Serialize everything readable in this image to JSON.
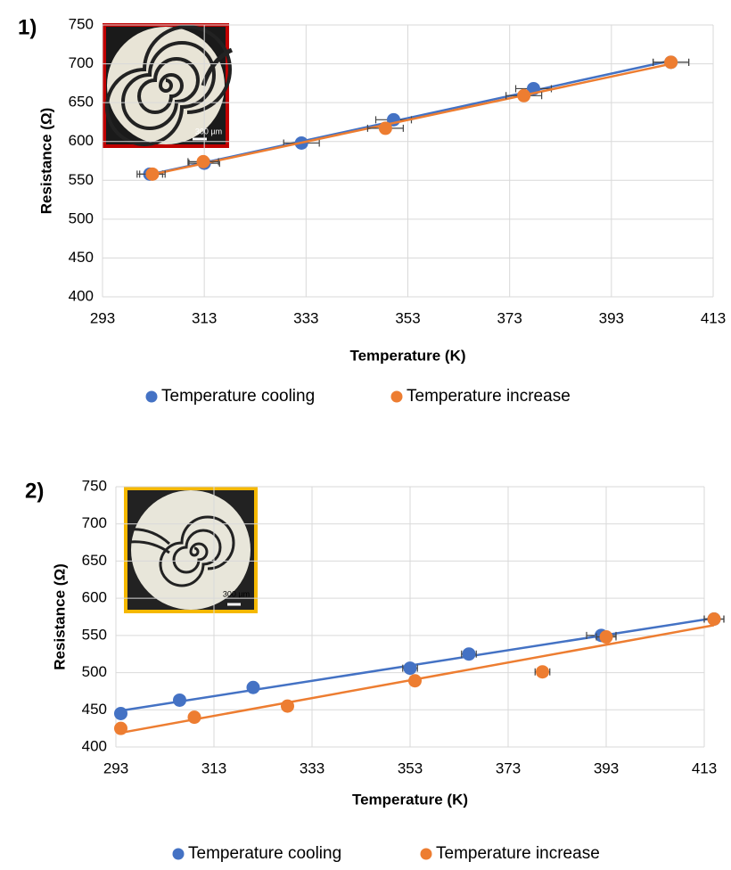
{
  "chart_data": [
    {
      "type": "scatter",
      "panel_label": "1)",
      "xlabel": "Temperature (K)",
      "ylabel": "Resistance (Ω)",
      "inset_scale": "300 µm",
      "xlim": [
        293,
        413
      ],
      "xticks": [
        293,
        313,
        333,
        353,
        373,
        393,
        413
      ],
      "ylim": [
        400,
        750
      ],
      "yticks": [
        400,
        450,
        500,
        550,
        600,
        650,
        700,
        750
      ],
      "grid": true,
      "trendline": "linear",
      "series": [
        {
          "name": "Temperature cooling",
          "color": "#4472c4",
          "x": [
            302.3,
            313,
            332.1,
            350.2,
            377.7,
            404.7
          ],
          "values": [
            558,
            572,
            598,
            628,
            668,
            702
          ],
          "xerr": [
            2.5,
            3,
            3.5,
            3.5,
            3.5,
            3.5
          ]
        },
        {
          "name": "Temperature increase",
          "color": "#ed7d31",
          "x": [
            302.8,
            312.8,
            348.6,
            375.8,
            404.7
          ],
          "values": [
            558,
            574,
            617,
            659,
            702
          ],
          "xerr": [
            2.5,
            3,
            3.5,
            3.5,
            3.5
          ]
        }
      ]
    },
    {
      "type": "scatter",
      "panel_label": "2)",
      "xlabel": "Temperature (K)",
      "ylabel": "Resistance (Ω)",
      "inset_scale": "300 µm",
      "xlim": [
        293,
        413
      ],
      "xticks": [
        293,
        313,
        333,
        353,
        373,
        393,
        413
      ],
      "ylim": [
        400,
        750
      ],
      "yticks": [
        400,
        450,
        500,
        550,
        600,
        650,
        700,
        750
      ],
      "grid": true,
      "trendline": "linear",
      "series": [
        {
          "name": "Temperature cooling",
          "color": "#4472c4",
          "x": [
            294,
            306,
            321,
            353,
            365,
            392,
            415
          ],
          "values": [
            445,
            463,
            480,
            506,
            525,
            550,
            572
          ],
          "xerr": [
            1,
            1,
            1,
            1.5,
            1.5,
            3,
            2
          ]
        },
        {
          "name": "Temperature increase",
          "color": "#ed7d31",
          "x": [
            294,
            309,
            328,
            354,
            380,
            393,
            415
          ],
          "values": [
            425,
            440,
            455,
            489,
            501,
            548,
            572
          ],
          "xerr": [
            1,
            1,
            1,
            1,
            1.5,
            2,
            2
          ]
        }
      ]
    }
  ]
}
